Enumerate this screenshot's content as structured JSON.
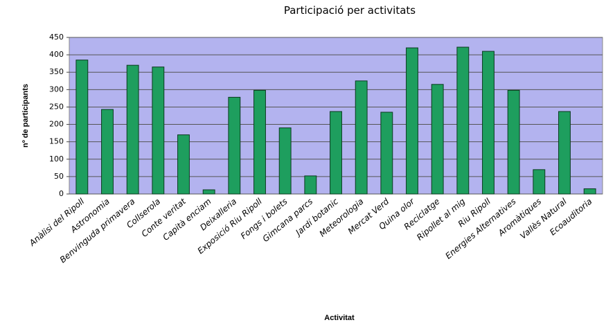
{
  "chart_data": {
    "type": "bar",
    "title": "Participació per activitats",
    "x_label": "Activitat",
    "y_label": "nº de participants",
    "categories": [
      "Anàlisi del Ripoll",
      "Astronomia",
      "Benvinguda primavera",
      "Collserola",
      "Conte veritat",
      "Capità enciam",
      "Deixalleria",
      "Exposició Riu Ripoll",
      "Fongs i bolets",
      "Gimcana parcs",
      "Jardí botanic",
      "Meteorologia",
      "Mercat Verd",
      "Quina olor",
      "Reciclatge",
      "Ripollet al mig",
      "Riu Ripoll",
      "Energies Alternatives",
      "Aromàtiques",
      "Vallès Natural",
      "Ecoauditoria"
    ],
    "values": [
      385,
      243,
      370,
      365,
      170,
      12,
      278,
      298,
      190,
      52,
      237,
      325,
      235,
      420,
      315,
      422,
      410,
      298,
      70,
      237,
      15
    ],
    "color": "#1e9e5e",
    "ylim": [
      0,
      450
    ],
    "yticks": [
      0,
      50,
      100,
      150,
      200,
      250,
      300,
      350,
      400,
      450
    ],
    "grid": true
  }
}
